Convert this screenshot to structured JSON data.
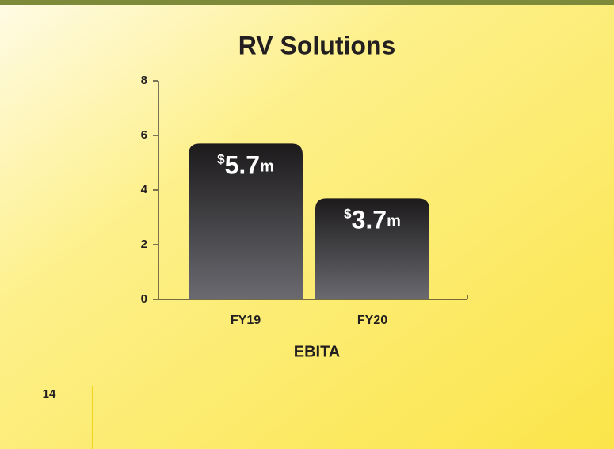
{
  "chart_data": {
    "type": "bar",
    "title": "RV Solutions",
    "x_label": "EBITA",
    "categories": [
      "FY19",
      "FY20"
    ],
    "values": [
      5.7,
      3.7
    ],
    "value_labels": [
      "$5.7m",
      "$3.7m"
    ],
    "ylim": [
      0,
      8
    ],
    "yticks": [
      0,
      2,
      4,
      6,
      8
    ],
    "grid": false
  },
  "page_number": "14"
}
